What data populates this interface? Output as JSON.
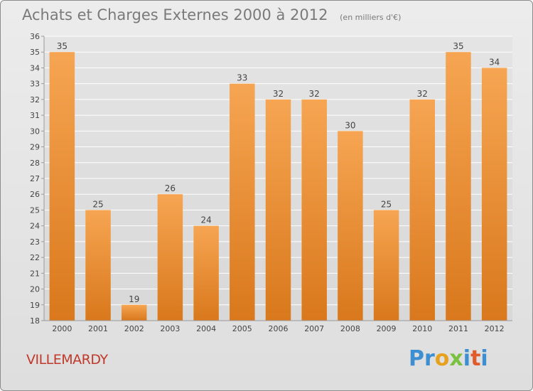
{
  "title": "Achats et Charges Externes 2000 à 2012",
  "subtitle": "(en milliers d'€)",
  "commune": "VILLEMARDY",
  "brand": {
    "letters": [
      "P",
      "r",
      "o",
      "x",
      "i",
      "t",
      "i"
    ],
    "colors": [
      "#3d8fd1",
      "#3d8fd1",
      "#e8a11c",
      "#7ac142",
      "#3d8fd1",
      "#e05a2b",
      "#3d8fd1"
    ]
  },
  "colors": {
    "bar_top": "#f6a552",
    "bar_bottom": "#d9781c",
    "grid": "#ffffff",
    "axis_text": "#444444"
  },
  "chart_data": {
    "type": "bar",
    "categories": [
      "2000",
      "2001",
      "2002",
      "2003",
      "2004",
      "2005",
      "2006",
      "2007",
      "2008",
      "2009",
      "2010",
      "2011",
      "2012"
    ],
    "values": [
      35,
      25,
      19,
      26,
      24,
      33,
      32,
      32,
      30,
      25,
      32,
      35,
      34
    ],
    "title": "Achats et Charges Externes 2000 à 2012",
    "subtitle": "(en milliers d'€)",
    "xlabel": "",
    "ylabel": "",
    "ylim": [
      18,
      36
    ],
    "yticks": [
      18,
      19,
      20,
      21,
      22,
      23,
      24,
      25,
      26,
      27,
      28,
      29,
      30,
      31,
      32,
      33,
      34,
      35,
      36
    ],
    "grid": true,
    "data_labels": true
  }
}
